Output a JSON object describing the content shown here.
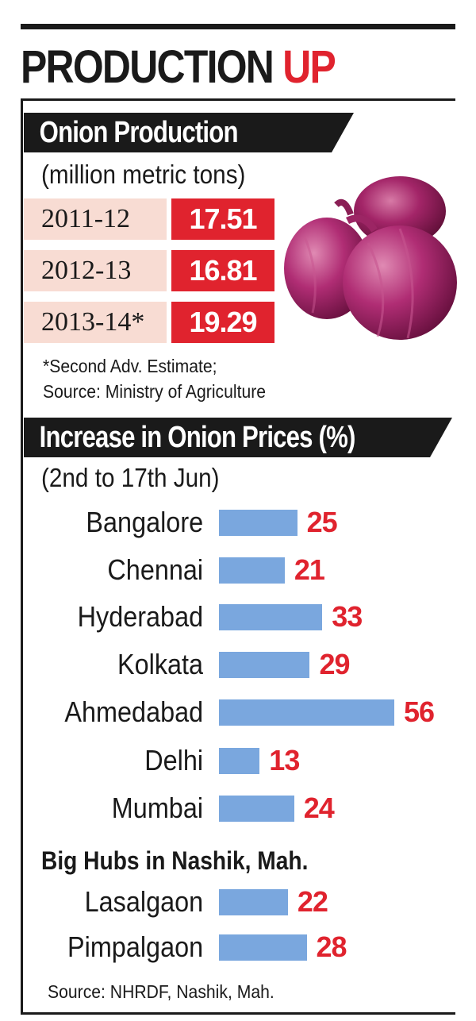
{
  "headline": {
    "main": "PRODUCTION",
    "accent": "UP"
  },
  "colors": {
    "accent_red": "#e0232e",
    "bar_blue": "#7aa7de",
    "year_bg": "#f8dcd3",
    "dark": "#1a1a1a"
  },
  "production": {
    "title": "Onion Production",
    "unit": "(million metric tons)",
    "rows": [
      {
        "year": "2011-12",
        "value": "17.51"
      },
      {
        "year": "2012-13",
        "value": "16.81"
      },
      {
        "year": "2013-14*",
        "value": "19.29"
      }
    ],
    "note_line1": "*Second Adv. Estimate;",
    "note_line2": "Source: Ministry of Agriculture",
    "image_icon": "onion-illustration"
  },
  "prices": {
    "title": "Increase in Onion Prices (%)",
    "period": "(2nd to 17th Jun)",
    "hub_heading": "Big Hubs in Nashik, Mah.",
    "source": "Source: NHRDF, Nashik, Mah."
  },
  "chart_data": [
    {
      "type": "table",
      "title": "Onion Production",
      "subtitle": "(million metric tons)",
      "categories": [
        "2011-12",
        "2012-13",
        "2013-14*"
      ],
      "values": [
        17.51,
        16.81,
        19.29
      ]
    },
    {
      "type": "bar",
      "orientation": "horizontal",
      "title": "Increase in Onion Prices (%)",
      "subtitle": "(2nd to 17th Jun)",
      "categories": [
        "Bangalore",
        "Chennai",
        "Hyderabad",
        "Kolkata",
        "Ahmedabad",
        "Delhi",
        "Mumbai"
      ],
      "values": [
        25,
        21,
        33,
        29,
        56,
        13,
        24
      ],
      "xlim": [
        0,
        56
      ],
      "grid": false
    },
    {
      "type": "bar",
      "orientation": "horizontal",
      "title": "Big Hubs in Nashik, Mah.",
      "categories": [
        "Lasalgaon",
        "Pimpalgaon"
      ],
      "values": [
        22,
        28
      ],
      "xlim": [
        0,
        56
      ],
      "grid": false
    }
  ]
}
